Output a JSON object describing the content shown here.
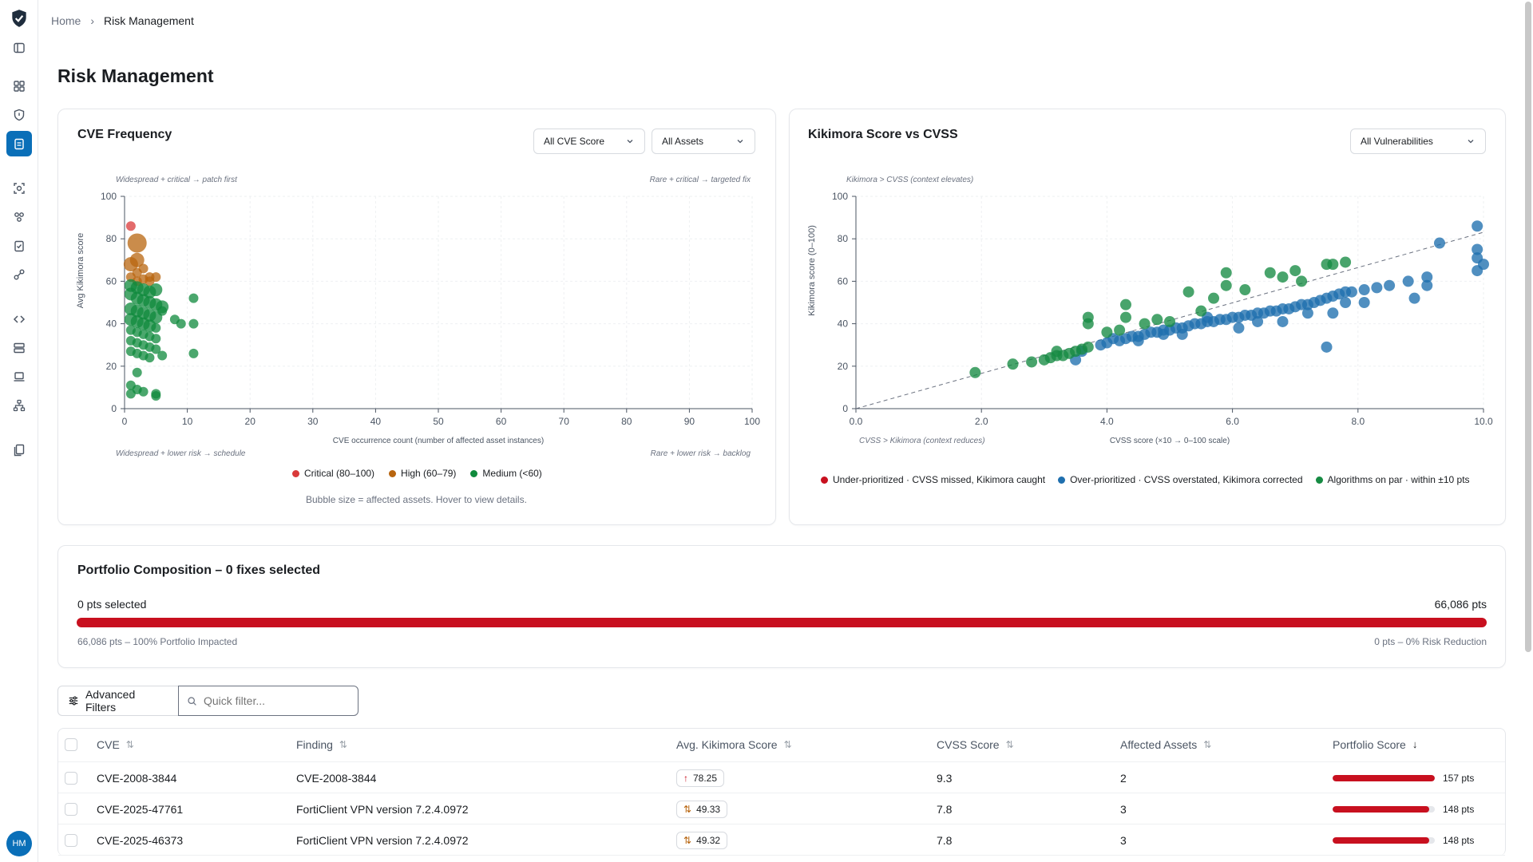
{
  "breadcrumb": {
    "home": "Home",
    "separator": "›",
    "current": "Risk Management"
  },
  "page_title": "Risk Management",
  "user": {
    "initials": "HM"
  },
  "nav_icons": [
    "logo-shield-icon",
    "sidebar-toggle-icon",
    "dashboard-icon",
    "shield-icon",
    "clipboard-icon",
    "scan-icon",
    "people-icon",
    "checklist-icon",
    "integrations-icon",
    "code-icon",
    "server-icon",
    "laptop-icon",
    "network-icon",
    "reports-icon"
  ],
  "colors": {
    "critical": "#d93a3a",
    "high": "#b8650f",
    "medium": "#0f8a3c",
    "under": "#c8101f",
    "over": "#1f6fae",
    "par": "#168b43",
    "accent": "#0a6fb8",
    "bar": "#c8101f"
  },
  "cve_frequency": {
    "title": "CVE Frequency",
    "filter_score": "All CVE Score",
    "filter_assets": "All Assets",
    "quadrants": {
      "tl": "Widespread + critical → patch first",
      "tr": "Rare + critical → targeted fix",
      "bl": "Widespread + lower risk → schedule",
      "br": "Rare + lower risk → backlog"
    },
    "legend": [
      "Critical (80–100)",
      "High (60–79)",
      "Medium (<60)"
    ],
    "footnote": "Bubble size = affected assets. Hover to view details."
  },
  "kikimora_vs_cvss": {
    "title": "Kikimora Score vs CVSS",
    "filter": "All Vulnerabilities",
    "quadrants": {
      "top": "Kikimora > CVSS (context elevates)",
      "bottom": "CVSS > Kikimora (context reduces)"
    },
    "legend": [
      "Under-prioritized · CVSS missed, Kikimora caught",
      "Over-prioritized · CVSS overstated, Kikimora corrected",
      "Algorithms on par · within ±10 pts"
    ]
  },
  "chart_data": [
    {
      "type": "scatter",
      "xlabel": "CVE occurrence count (number of affected asset instances)",
      "ylabel": "Avg Kikimora score",
      "xlim": [
        0,
        100
      ],
      "ylim": [
        0,
        100
      ],
      "xticks": [
        "0",
        "10",
        "20",
        "30",
        "40",
        "50",
        "60",
        "70",
        "80",
        "90",
        "100"
      ],
      "yticks": [
        "0",
        "20",
        "40",
        "60",
        "80",
        "100"
      ],
      "legend_position": "bottom",
      "grid": true,
      "series": [
        {
          "name": "Critical (80–100)",
          "points": [
            [
              1,
              86
            ]
          ]
        },
        {
          "name": "High (60–79)",
          "points": [
            [
              2,
              78
            ],
            [
              2,
              70
            ],
            [
              1,
              68
            ],
            [
              3,
              66
            ],
            [
              4,
              62
            ],
            [
              5,
              62
            ],
            [
              2,
              64
            ],
            [
              1,
              62
            ],
            [
              3,
              61
            ],
            [
              2,
              60
            ],
            [
              4,
              60
            ]
          ]
        },
        {
          "name": "Medium (<60)",
          "points": [
            [
              1,
              58
            ],
            [
              2,
              57
            ],
            [
              3,
              56
            ],
            [
              4,
              55
            ],
            [
              5,
              56
            ],
            [
              1,
              54
            ],
            [
              2,
              52
            ],
            [
              3,
              51
            ],
            [
              4,
              50
            ],
            [
              5,
              49
            ],
            [
              6,
              48
            ],
            [
              1,
              47
            ],
            [
              2,
              46
            ],
            [
              3,
              45
            ],
            [
              4,
              44
            ],
            [
              5,
              43
            ],
            [
              1,
              42
            ],
            [
              2,
              41
            ],
            [
              3,
              40
            ],
            [
              4,
              39
            ],
            [
              5,
              38
            ],
            [
              1,
              37
            ],
            [
              2,
              36
            ],
            [
              3,
              35
            ],
            [
              4,
              34
            ],
            [
              5,
              33
            ],
            [
              1,
              32
            ],
            [
              2,
              31
            ],
            [
              3,
              30
            ],
            [
              4,
              29
            ],
            [
              5,
              28
            ],
            [
              1,
              27
            ],
            [
              2,
              26
            ],
            [
              3,
              25
            ],
            [
              4,
              24
            ],
            [
              6,
              25
            ],
            [
              8,
              42
            ],
            [
              9,
              40
            ],
            [
              11,
              52
            ],
            [
              11,
              40
            ],
            [
              11,
              26
            ],
            [
              6,
              46
            ],
            [
              2,
              17
            ],
            [
              1,
              11
            ],
            [
              2,
              9
            ],
            [
              3,
              8
            ],
            [
              5,
              7
            ],
            [
              5,
              6
            ],
            [
              1,
              7
            ]
          ]
        }
      ]
    },
    {
      "type": "scatter",
      "xlabel": "CVSS score (×10 → 0–100 scale)",
      "ylabel": "Kikimora score (0–100)",
      "xlim": [
        0,
        10
      ],
      "ylim": [
        0,
        100
      ],
      "xticks": [
        "0.0",
        "2.0",
        "4.0",
        "6.0",
        "8.0",
        "10.0"
      ],
      "yticks": [
        "0",
        "20",
        "40",
        "60",
        "80",
        "100"
      ],
      "legend_position": "bottom",
      "grid": true,
      "diagonal": true,
      "series": [
        {
          "name": "Under-prioritized · CVSS missed, Kikimora caught",
          "points": []
        },
        {
          "name": "Over-prioritized · CVSS overstated, Kikimora corrected",
          "points": [
            [
              3.6,
              27
            ],
            [
              3.9,
              30
            ],
            [
              4.0,
              31
            ],
            [
              4.2,
              32
            ],
            [
              4.3,
              33
            ],
            [
              4.4,
              34
            ],
            [
              4.5,
              34
            ],
            [
              4.6,
              35
            ],
            [
              4.7,
              36
            ],
            [
              4.8,
              36
            ],
            [
              4.9,
              37
            ],
            [
              5.0,
              37
            ],
            [
              5.1,
              38
            ],
            [
              5.2,
              38
            ],
            [
              5.3,
              39
            ],
            [
              5.4,
              40
            ],
            [
              5.5,
              40
            ],
            [
              5.6,
              41
            ],
            [
              5.7,
              41
            ],
            [
              5.8,
              42
            ],
            [
              5.9,
              42
            ],
            [
              6.0,
              43
            ],
            [
              6.1,
              43
            ],
            [
              6.2,
              44
            ],
            [
              6.3,
              44
            ],
            [
              6.4,
              45
            ],
            [
              6.5,
              45
            ],
            [
              6.6,
              46
            ],
            [
              6.7,
              46
            ],
            [
              6.8,
              47
            ],
            [
              6.9,
              47
            ],
            [
              7.0,
              48
            ],
            [
              7.1,
              49
            ],
            [
              7.2,
              49
            ],
            [
              7.3,
              50
            ],
            [
              7.4,
              51
            ],
            [
              7.5,
              52
            ],
            [
              7.6,
              53
            ],
            [
              7.7,
              54
            ],
            [
              7.8,
              55
            ],
            [
              7.9,
              55
            ],
            [
              8.1,
              56
            ],
            [
              8.3,
              57
            ],
            [
              8.5,
              58
            ],
            [
              8.8,
              60
            ],
            [
              9.1,
              62
            ],
            [
              9.3,
              78
            ],
            [
              9.9,
              86
            ],
            [
              9.9,
              75
            ],
            [
              9.9,
              71
            ],
            [
              10.0,
              68
            ],
            [
              9.9,
              65
            ],
            [
              7.5,
              29
            ],
            [
              3.5,
              23
            ],
            [
              4.5,
              32
            ],
            [
              5.2,
              35
            ],
            [
              6.1,
              38
            ],
            [
              6.8,
              41
            ],
            [
              7.6,
              45
            ],
            [
              8.1,
              50
            ],
            [
              8.9,
              52
            ],
            [
              9.1,
              58
            ],
            [
              5.6,
              43
            ],
            [
              6.4,
              41
            ],
            [
              7.2,
              45
            ],
            [
              7.8,
              50
            ],
            [
              4.9,
              35
            ],
            [
              4.1,
              33
            ]
          ]
        },
        {
          "name": "Algorithms on par · within ±10 pts",
          "points": [
            [
              1.9,
              17
            ],
            [
              2.5,
              21
            ],
            [
              2.8,
              22
            ],
            [
              3.0,
              23
            ],
            [
              3.1,
              24
            ],
            [
              3.2,
              25
            ],
            [
              3.3,
              25
            ],
            [
              3.4,
              26
            ],
            [
              3.5,
              27
            ],
            [
              3.6,
              28
            ],
            [
              3.7,
              29
            ],
            [
              3.7,
              43
            ],
            [
              3.7,
              40
            ],
            [
              4.2,
              37
            ],
            [
              4.3,
              49
            ],
            [
              4.3,
              43
            ],
            [
              4.6,
              40
            ],
            [
              4.8,
              42
            ],
            [
              5.0,
              41
            ],
            [
              5.3,
              55
            ],
            [
              5.5,
              46
            ],
            [
              5.7,
              52
            ],
            [
              5.9,
              64
            ],
            [
              5.9,
              58
            ],
            [
              6.2,
              56
            ],
            [
              6.6,
              64
            ],
            [
              6.8,
              62
            ],
            [
              7.0,
              65
            ],
            [
              7.1,
              60
            ],
            [
              7.5,
              68
            ],
            [
              7.6,
              68
            ],
            [
              7.8,
              69
            ],
            [
              4.0,
              36
            ],
            [
              3.2,
              27
            ]
          ]
        }
      ]
    }
  ],
  "portfolio": {
    "title": "Portfolio Composition – 0 fixes selected",
    "selected": "0 pts selected",
    "total": "66,086 pts",
    "left_note": "66,086 pts – 100% Portfolio Impacted",
    "right_note": "0 pts – 0% Risk Reduction",
    "fill_fraction": 1.0
  },
  "toolbar": {
    "advanced_filters": "Advanced Filters",
    "quick_filter_placeholder": "Quick filter..."
  },
  "table": {
    "headers": [
      "CVE",
      "Finding",
      "Avg. Kikimora Score",
      "CVSS Score",
      "Affected Assets",
      "Portfolio Score"
    ],
    "rows": [
      {
        "cve": "CVE-2008-3844",
        "finding": "CVE-2008-3844",
        "kscore": "78.25",
        "trend": "↑",
        "cvss": "9.3",
        "assets": "2",
        "portfolio": "157 pts",
        "fill": 1.0
      },
      {
        "cve": "CVE-2025-47761",
        "finding": "FortiClient VPN version 7.2.4.0972",
        "kscore": "49.33",
        "trend": "⇅",
        "cvss": "7.8",
        "assets": "3",
        "portfolio": "148 pts",
        "fill": 0.943
      },
      {
        "cve": "CVE-2025-46373",
        "finding": "FortiClient VPN version 7.2.4.0972",
        "kscore": "49.32",
        "trend": "⇅",
        "cvss": "7.8",
        "assets": "3",
        "portfolio": "148 pts",
        "fill": 0.943
      }
    ]
  }
}
